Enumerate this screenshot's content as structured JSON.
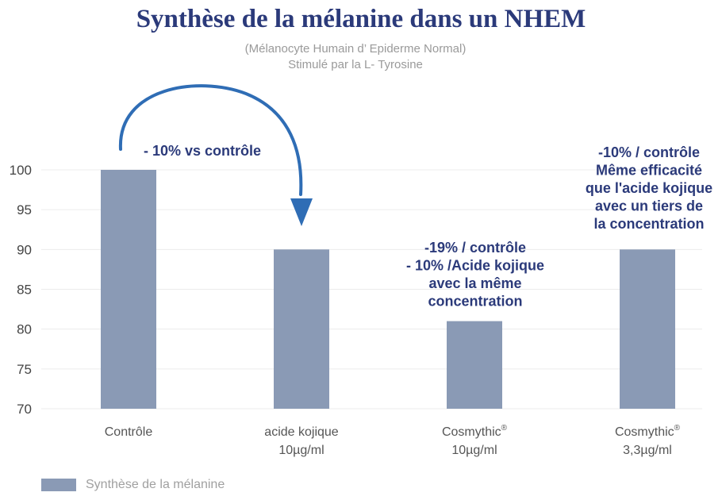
{
  "header": {
    "title": "Synthèse de la mélanine dans un NHEM",
    "subtitle_line1": "(Mélanocyte Humain d’ Epiderme Normal)",
    "subtitle_line2": "Stimulé par la L- Tyrosine"
  },
  "colors": {
    "bar": "#8a9ab5",
    "title": "#2b3a7a",
    "arrow": "#2f6db5",
    "grid": "#ececec"
  },
  "chart_data": {
    "type": "bar",
    "ylim": [
      70,
      100
    ],
    "yticks": [
      70,
      75,
      80,
      85,
      90,
      95,
      100
    ],
    "grid": true,
    "legend_position": "bottom-left",
    "categories": [
      [
        "Contrôle"
      ],
      [
        "acide kojique",
        "10µg/ml"
      ],
      [
        "Cosmythic®",
        "10µg/ml"
      ],
      [
        "Cosmythic®",
        "3,3µg/ml"
      ]
    ],
    "series": [
      {
        "name": "Synthèse de la mélanine",
        "values": [
          100,
          90,
          81,
          90
        ]
      }
    ],
    "annotations": [
      {
        "lines": [
          "- 10% vs contrôle"
        ]
      },
      {
        "lines": [
          "-19% / contrôle",
          "- 10% /Acide kojique",
          "avec la même",
          "concentration"
        ]
      },
      {
        "lines": [
          "-10% / contrôle",
          "Même efficacité",
          "que l'acide kojique",
          "avec un tiers de",
          "la concentration"
        ]
      }
    ]
  }
}
